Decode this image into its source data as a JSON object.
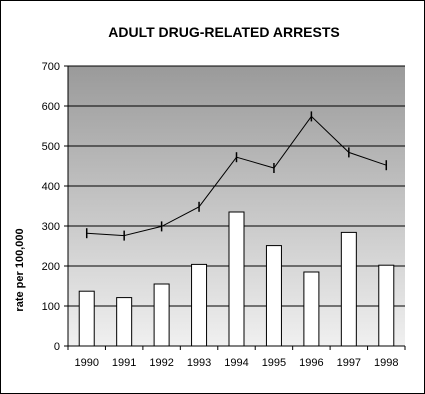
{
  "chart_data": {
    "type": "bar",
    "title": "ADULT DRUG-RELATED ARRESTS",
    "xlabel": "",
    "ylabel": "rate per 100,000",
    "categories": [
      "1990",
      "1991",
      "1992",
      "1993",
      "1994",
      "1995",
      "1996",
      "1997",
      "1998"
    ],
    "series": [
      {
        "type": "bar",
        "values": [
          137,
          121,
          155,
          204,
          335,
          251,
          185,
          284,
          202
        ]
      },
      {
        "type": "line",
        "values": [
          282,
          276,
          299,
          348,
          472,
          445,
          574,
          484,
          452
        ]
      }
    ],
    "ylim": [
      0,
      700
    ],
    "yticks": [
      "0",
      "100",
      "200",
      "300",
      "400",
      "500",
      "600",
      "700"
    ],
    "grid": true,
    "legend": "none",
    "colors": {
      "bar_fill": "#ffffff",
      "bar_stroke": "#000000",
      "line": "#000000",
      "plot_bg_top": "#9a9a9a",
      "plot_bg_bottom": "#f0f0f0"
    }
  }
}
